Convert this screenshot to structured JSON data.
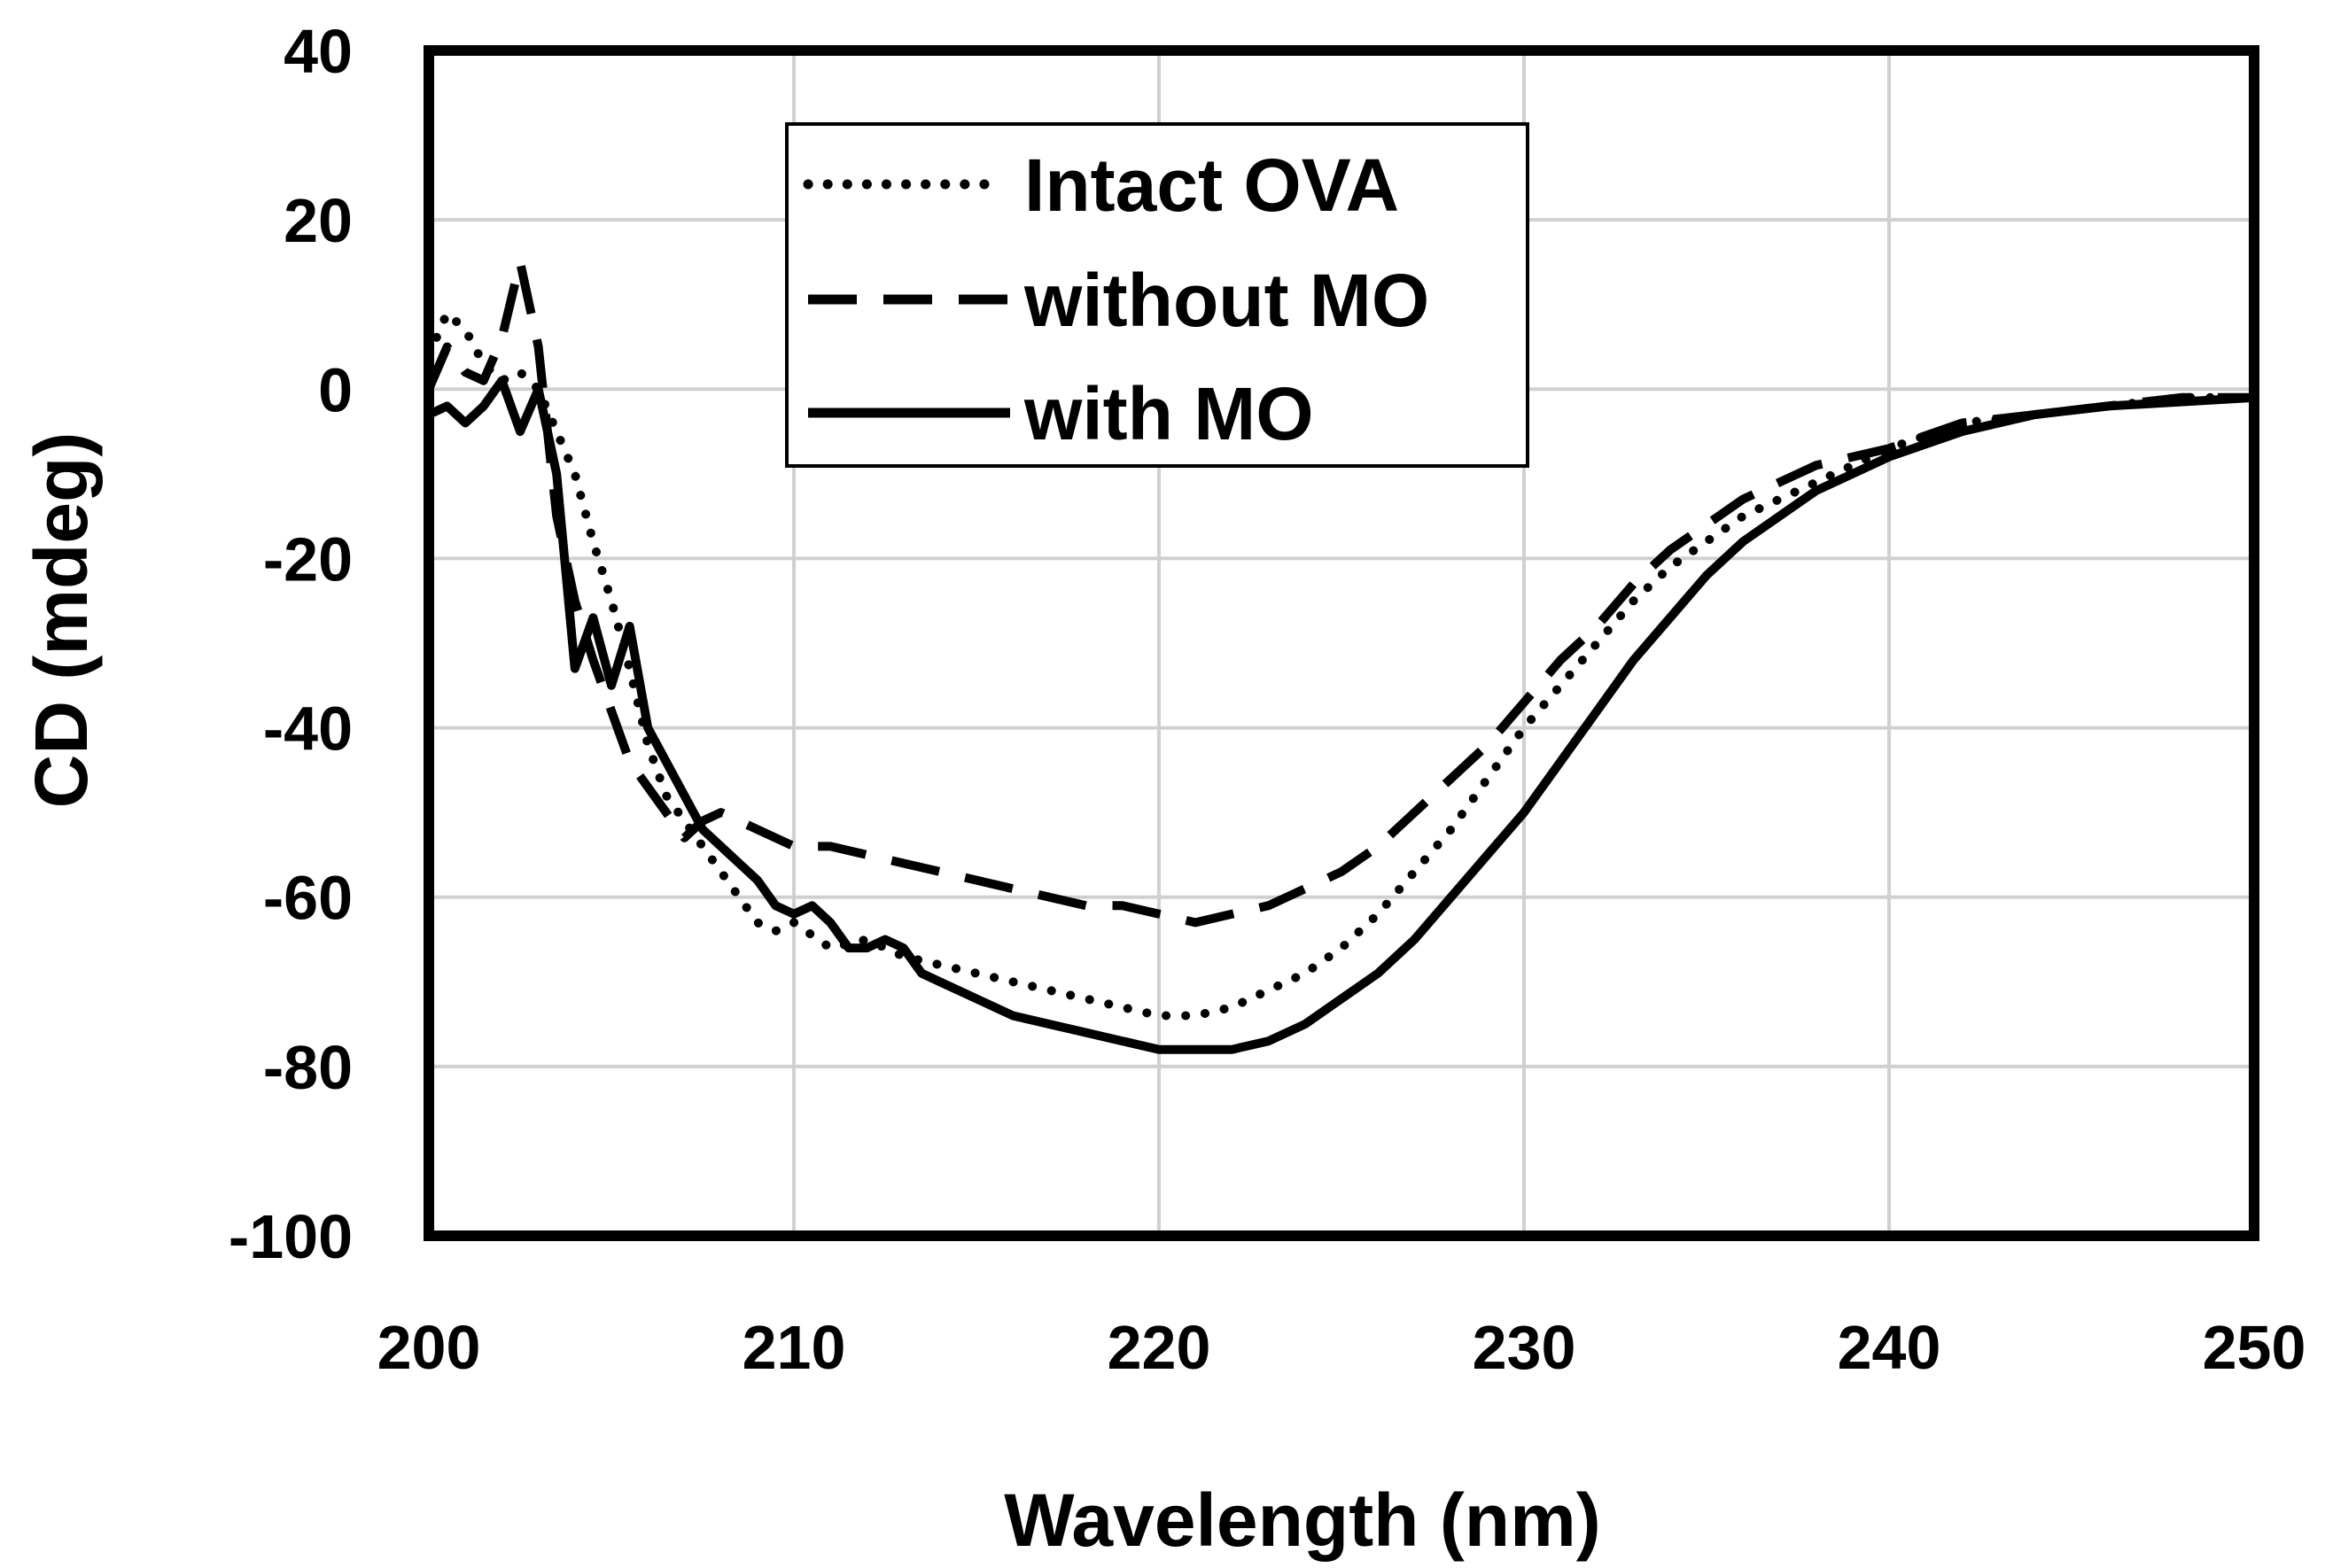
{
  "chart_data": {
    "type": "line",
    "title": "",
    "xlabel": "Wavelength (nm)",
    "ylabel": "CD (mdeg)",
    "xlim": [
      200,
      250
    ],
    "ylim": [
      -100,
      40
    ],
    "x_ticks": [
      200,
      210,
      220,
      230,
      240,
      250
    ],
    "y_ticks": [
      40,
      20,
      0,
      -20,
      -40,
      -60,
      -80,
      -100
    ],
    "x_tick_labels": [
      "200",
      "210",
      "220",
      "230",
      "240",
      "250"
    ],
    "y_tick_labels": [
      "40",
      "20",
      "0",
      "-20",
      "-40",
      "-60",
      "-80",
      "-100"
    ],
    "grid": true,
    "legend_position": "top-center",
    "series": [
      {
        "name": "Intact OVA",
        "style": "dotted",
        "color": "#000000",
        "x": [
          200,
          200.5,
          201,
          201.5,
          202,
          202.5,
          203,
          203.5,
          204,
          204.5,
          205,
          205.5,
          206,
          206.5,
          207,
          207.5,
          208,
          208.5,
          209,
          209.5,
          210,
          211,
          212,
          213,
          214,
          215,
          216,
          217,
          218,
          219,
          220,
          221,
          222,
          223,
          224,
          225,
          226,
          227,
          228,
          229,
          230,
          231,
          232,
          233,
          234,
          235,
          236,
          237,
          238,
          239,
          240,
          242,
          244,
          246,
          248,
          250
        ],
        "y": [
          4,
          9,
          7,
          3,
          1,
          2,
          0,
          -5,
          -10,
          -18,
          -25,
          -33,
          -42,
          -48,
          -51,
          -54,
          -57,
          -60,
          -63,
          -64,
          -63,
          -66,
          -65,
          -67,
          -68,
          -69,
          -70,
          -71,
          -72,
          -73,
          -74,
          -74,
          -73,
          -71,
          -69,
          -66,
          -62,
          -57,
          -52,
          -46,
          -40,
          -35,
          -30,
          -25,
          -21,
          -18,
          -15,
          -13,
          -11,
          -9,
          -7,
          -4,
          -3,
          -2,
          -1,
          -1
        ]
      },
      {
        "name": "without MO",
        "style": "dashed",
        "color": "#000000",
        "x": [
          200,
          200.5,
          201,
          201.5,
          202,
          202.5,
          203,
          203.5,
          204,
          204.5,
          205,
          205.5,
          206,
          206.5,
          207,
          207.5,
          208,
          209,
          210,
          211,
          212,
          213,
          214,
          215,
          216,
          217,
          218,
          219,
          220,
          221,
          222,
          223,
          224,
          225,
          226,
          227,
          228,
          229,
          230,
          231,
          232,
          233,
          234,
          235,
          236,
          237,
          238,
          239,
          240,
          242,
          244,
          246,
          248,
          250
        ],
        "y": [
          0,
          5,
          2,
          1,
          6,
          15,
          5,
          -15,
          -25,
          -32,
          -38,
          -44,
          -47,
          -50,
          -53,
          -51,
          -50,
          -52,
          -54,
          -54,
          -55,
          -56,
          -57,
          -58,
          -59,
          -60,
          -61,
          -61,
          -62,
          -63,
          -62,
          -61,
          -59,
          -57,
          -54,
          -50,
          -46,
          -42,
          -37,
          -32,
          -28,
          -23,
          -19,
          -16,
          -13,
          -11,
          -9,
          -8,
          -7,
          -4,
          -3,
          -2,
          -1,
          -1
        ]
      },
      {
        "name": "with MO",
        "style": "solid",
        "color": "#000000",
        "x": [
          200,
          200.5,
          201,
          201.5,
          202,
          202.5,
          203,
          203.5,
          204,
          204.5,
          205,
          205.5,
          206,
          206.5,
          207,
          207.5,
          208,
          208.5,
          209,
          209.5,
          210,
          210.5,
          211,
          211.5,
          212,
          212.5,
          213,
          213.5,
          214,
          215,
          216,
          217,
          218,
          219,
          220,
          221,
          222,
          223,
          224,
          225,
          226,
          227,
          228,
          229,
          230,
          231,
          232,
          233,
          234,
          235,
          236,
          237,
          238,
          239,
          240,
          242,
          244,
          246,
          248,
          250
        ],
        "y": [
          -3,
          -2,
          -4,
          -2,
          1,
          -5,
          0,
          -10,
          -33,
          -27,
          -35,
          -28,
          -40,
          -44,
          -48,
          -52,
          -54,
          -56,
          -58,
          -61,
          -62,
          -61,
          -63,
          -66,
          -66,
          -65,
          -66,
          -69,
          -70,
          -72,
          -74,
          -75,
          -76,
          -77,
          -78,
          -78,
          -78,
          -77,
          -75,
          -72,
          -69,
          -65,
          -60,
          -55,
          -50,
          -44,
          -38,
          -32,
          -27,
          -22,
          -18,
          -15,
          -12,
          -10,
          -8,
          -5,
          -3,
          -2,
          -1.5,
          -1
        ]
      }
    ]
  }
}
